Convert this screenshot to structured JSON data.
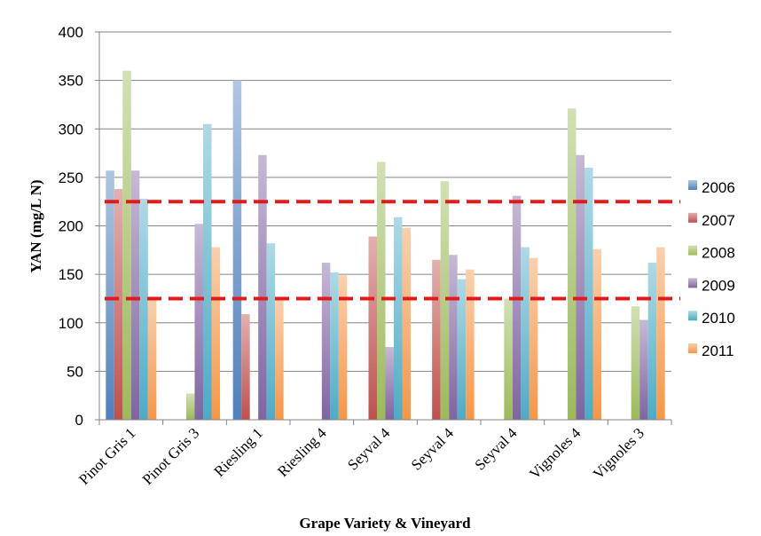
{
  "chart_data": {
    "type": "bar",
    "xlabel": "Grape Variety & Vineyard",
    "ylabel": "YAN (mg/L N)",
    "ylim": [
      0,
      400
    ],
    "yticks": [
      0,
      50,
      100,
      150,
      200,
      250,
      300,
      350,
      400
    ],
    "grid": "horizontal",
    "legend_position": "right",
    "categories": [
      "Pinot Gris 1",
      "Pinot Gris 3",
      "Riesling 1",
      "Riesling 4",
      "Seyval 4",
      "Seyval 4",
      "Seyval 4",
      "Vignoles 4",
      "Vignoles 3"
    ],
    "series": [
      {
        "name": "2006",
        "color": "#4f81bd",
        "values": [
          257,
          null,
          350,
          null,
          null,
          null,
          null,
          null,
          null
        ]
      },
      {
        "name": "2007",
        "color": "#c0504d",
        "values": [
          238,
          null,
          109,
          null,
          189,
          165,
          null,
          null,
          null
        ]
      },
      {
        "name": "2008",
        "color": "#9bbb59",
        "values": [
          360,
          27,
          null,
          null,
          266,
          246,
          125,
          321,
          117
        ]
      },
      {
        "name": "2009",
        "color": "#8064a2",
        "values": [
          257,
          202,
          273,
          162,
          75,
          170,
          231,
          273,
          103
        ]
      },
      {
        "name": "2010",
        "color": "#4bacc6",
        "values": [
          228,
          305,
          182,
          152,
          209,
          145,
          178,
          260,
          162
        ]
      },
      {
        "name": "2011",
        "color": "#f79646",
        "values": [
          125,
          178,
          124,
          149,
          198,
          155,
          167,
          176,
          178
        ]
      }
    ],
    "reference_lines": [
      {
        "y": 225,
        "color": "#e21a1a",
        "style": "dashed"
      },
      {
        "y": 125,
        "color": "#e21a1a",
        "style": "dashed"
      }
    ]
  }
}
